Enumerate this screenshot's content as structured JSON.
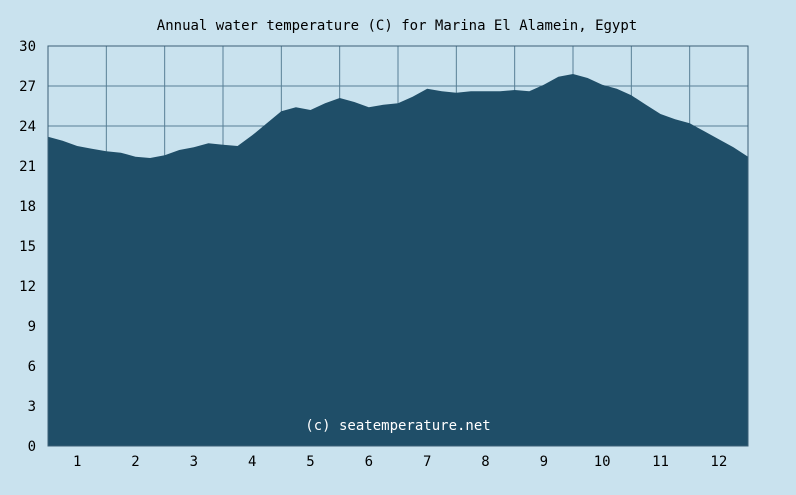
{
  "chart_data": {
    "type": "area",
    "title": "Annual water temperature (C) for Marina El Alamein, Egypt",
    "watermark": "(c) seatemperature.net",
    "xlabel": "",
    "ylabel": "",
    "x_tick_labels": [
      "1",
      "2",
      "3",
      "4",
      "5",
      "6",
      "7",
      "8",
      "9",
      "10",
      "11",
      "12"
    ],
    "y_tick_labels": [
      "0",
      "3",
      "6",
      "9",
      "12",
      "15",
      "18",
      "21",
      "24",
      "27",
      "30"
    ],
    "ylim": [
      0,
      30
    ],
    "xlim": [
      0,
      12
    ],
    "grid": true,
    "colors": {
      "area": "#1f4e68",
      "background": "#c9e2ee",
      "grid": "#587f96",
      "border": "#3a5f75"
    },
    "x": [
      0.0,
      0.25,
      0.5,
      0.75,
      1.0,
      1.25,
      1.5,
      1.75,
      2.0,
      2.25,
      2.5,
      2.75,
      3.0,
      3.25,
      3.5,
      3.75,
      4.0,
      4.25,
      4.5,
      4.75,
      5.0,
      5.25,
      5.5,
      5.75,
      6.0,
      6.25,
      6.5,
      6.75,
      7.0,
      7.25,
      7.5,
      7.75,
      8.0,
      8.25,
      8.5,
      8.75,
      9.0,
      9.25,
      9.5,
      9.75,
      10.0,
      10.25,
      10.5,
      10.75,
      11.0,
      11.25,
      11.5,
      11.75,
      12.0
    ],
    "values": [
      23.2,
      22.9,
      22.5,
      22.3,
      22.1,
      22.0,
      21.7,
      21.6,
      21.8,
      22.2,
      22.4,
      22.7,
      22.6,
      22.5,
      23.3,
      24.2,
      25.1,
      25.4,
      25.2,
      25.7,
      26.1,
      25.8,
      25.4,
      25.6,
      25.7,
      26.2,
      26.8,
      26.6,
      26.5,
      26.6,
      26.6,
      26.6,
      26.7,
      26.6,
      27.1,
      27.7,
      27.9,
      27.6,
      27.1,
      26.8,
      26.3,
      25.6,
      24.9,
      24.5,
      24.2,
      23.6,
      23.0,
      22.4,
      21.7
    ]
  }
}
